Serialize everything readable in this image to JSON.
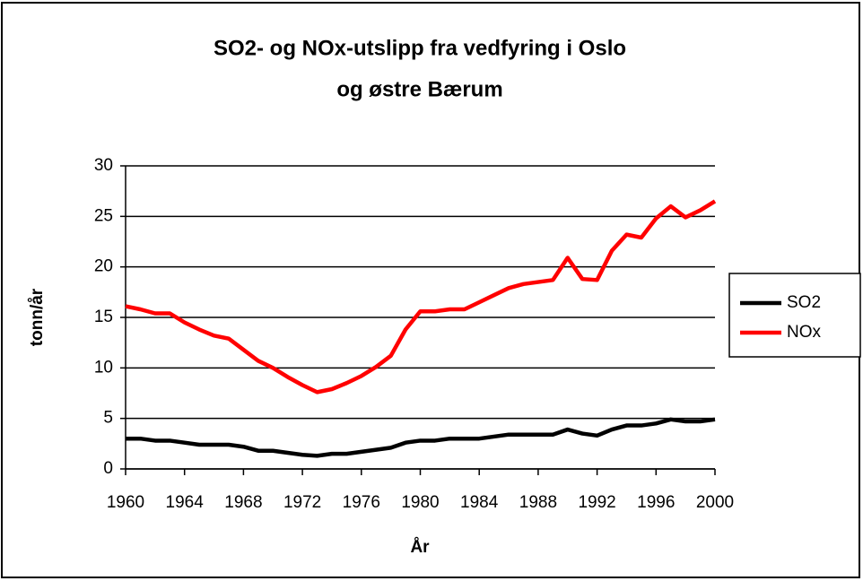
{
  "chart_data": {
    "type": "line",
    "title": [
      "SO2- og NOx-utslipp fra vedfyring i Oslo",
      "og østre Bærum"
    ],
    "x_label": "År",
    "y_label": "tonn/år",
    "x": [
      1960,
      1961,
      1962,
      1963,
      1964,
      1965,
      1966,
      1967,
      1968,
      1969,
      1970,
      1971,
      1972,
      1973,
      1974,
      1975,
      1976,
      1977,
      1978,
      1979,
      1980,
      1981,
      1982,
      1983,
      1984,
      1985,
      1986,
      1987,
      1988,
      1989,
      1990,
      1991,
      1992,
      1993,
      1994,
      1995,
      1996,
      1997,
      1998,
      1999,
      2000
    ],
    "series": [
      {
        "name": "SO2",
        "color": "#000000",
        "values": [
          3.0,
          3.0,
          2.8,
          2.8,
          2.6,
          2.4,
          2.4,
          2.4,
          2.2,
          1.8,
          1.8,
          1.6,
          1.4,
          1.3,
          1.5,
          1.5,
          1.7,
          1.9,
          2.1,
          2.6,
          2.8,
          2.8,
          3.0,
          3.0,
          3.0,
          3.2,
          3.4,
          3.4,
          3.4,
          3.4,
          3.9,
          3.5,
          3.3,
          3.9,
          4.3,
          4.3,
          4.5,
          4.9,
          4.7,
          4.7,
          4.9
        ]
      },
      {
        "name": "NOx",
        "color": "#ff0000",
        "values": [
          16.1,
          15.8,
          15.4,
          15.4,
          14.5,
          13.8,
          13.2,
          12.9,
          11.8,
          10.7,
          10.0,
          9.1,
          8.3,
          7.6,
          7.9,
          8.5,
          9.2,
          10.1,
          11.2,
          13.8,
          15.6,
          15.6,
          15.8,
          15.8,
          16.5,
          17.2,
          17.9,
          18.3,
          18.5,
          18.7,
          20.9,
          18.8,
          18.7,
          21.6,
          23.2,
          22.9,
          24.8,
          26.0,
          24.9,
          25.6,
          26.5
        ]
      }
    ],
    "xlim": [
      1960,
      2000
    ],
    "xticks": [
      1960,
      1964,
      1968,
      1972,
      1976,
      1980,
      1984,
      1988,
      1992,
      1996,
      2000
    ],
    "ylim": [
      0,
      30
    ],
    "yticks": [
      0,
      5,
      10,
      15,
      20,
      25,
      30
    ],
    "grid": true,
    "legend": "right"
  }
}
